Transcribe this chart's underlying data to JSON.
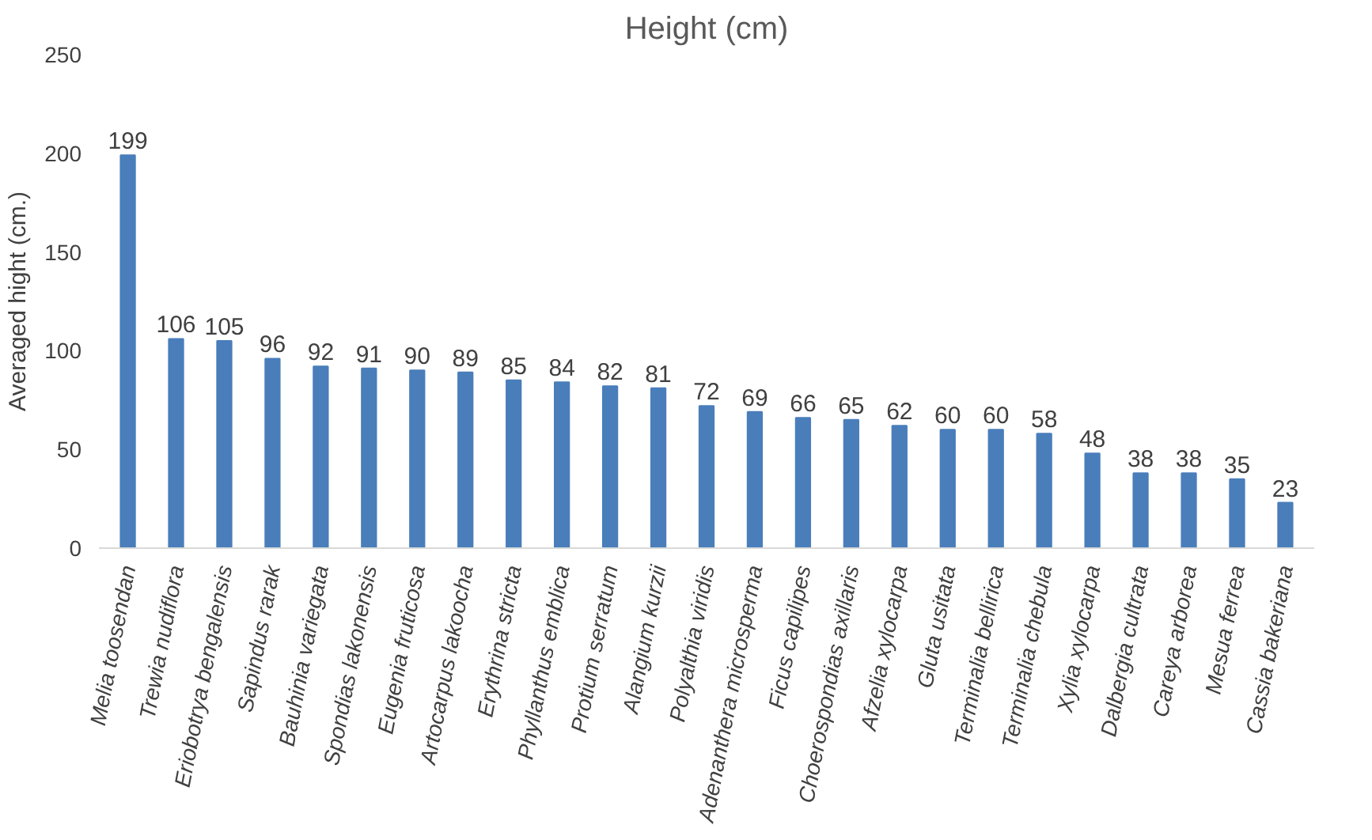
{
  "chart_data": {
    "type": "bar",
    "title": "Height (cm)",
    "ylabel": "Averaged hight (cm.)",
    "categories": [
      "Melia toosendan",
      "Trewia nudiflora",
      "Eriobotrya bengalensis",
      "Sapindus rarak",
      "Bauhinia variegata",
      "Spondias lakonensis",
      "Eugenia fruticosa",
      "Artocarpus lakoocha",
      "Erythrina stricta",
      "Phyllanthus emblica",
      "Protium serratum",
      "Alangium kurzii",
      "Polyalthia viridis",
      "Adenanthera microsperma",
      "Ficus capilipes",
      "Choerospondias axillaris",
      "Afzelia xylocarpa",
      "Gluta usitata",
      "Terminalia bellirica",
      "Terminalia chebula",
      "Xylia xylocarpa",
      "Dalbergia cultrata",
      "Careya arborea",
      "Mesua ferrea",
      "Cassia bakeriana"
    ],
    "values": [
      199,
      106,
      105,
      96,
      92,
      91,
      90,
      89,
      85,
      84,
      82,
      81,
      72,
      69,
      66,
      65,
      62,
      60,
      60,
      58,
      48,
      38,
      38,
      35,
      23
    ],
    "color": "#4a7ebb",
    "ylim": [
      0,
      250
    ],
    "yticks": [
      0,
      50,
      100,
      150,
      200,
      250
    ],
    "grid": false,
    "data_labels": true
  }
}
